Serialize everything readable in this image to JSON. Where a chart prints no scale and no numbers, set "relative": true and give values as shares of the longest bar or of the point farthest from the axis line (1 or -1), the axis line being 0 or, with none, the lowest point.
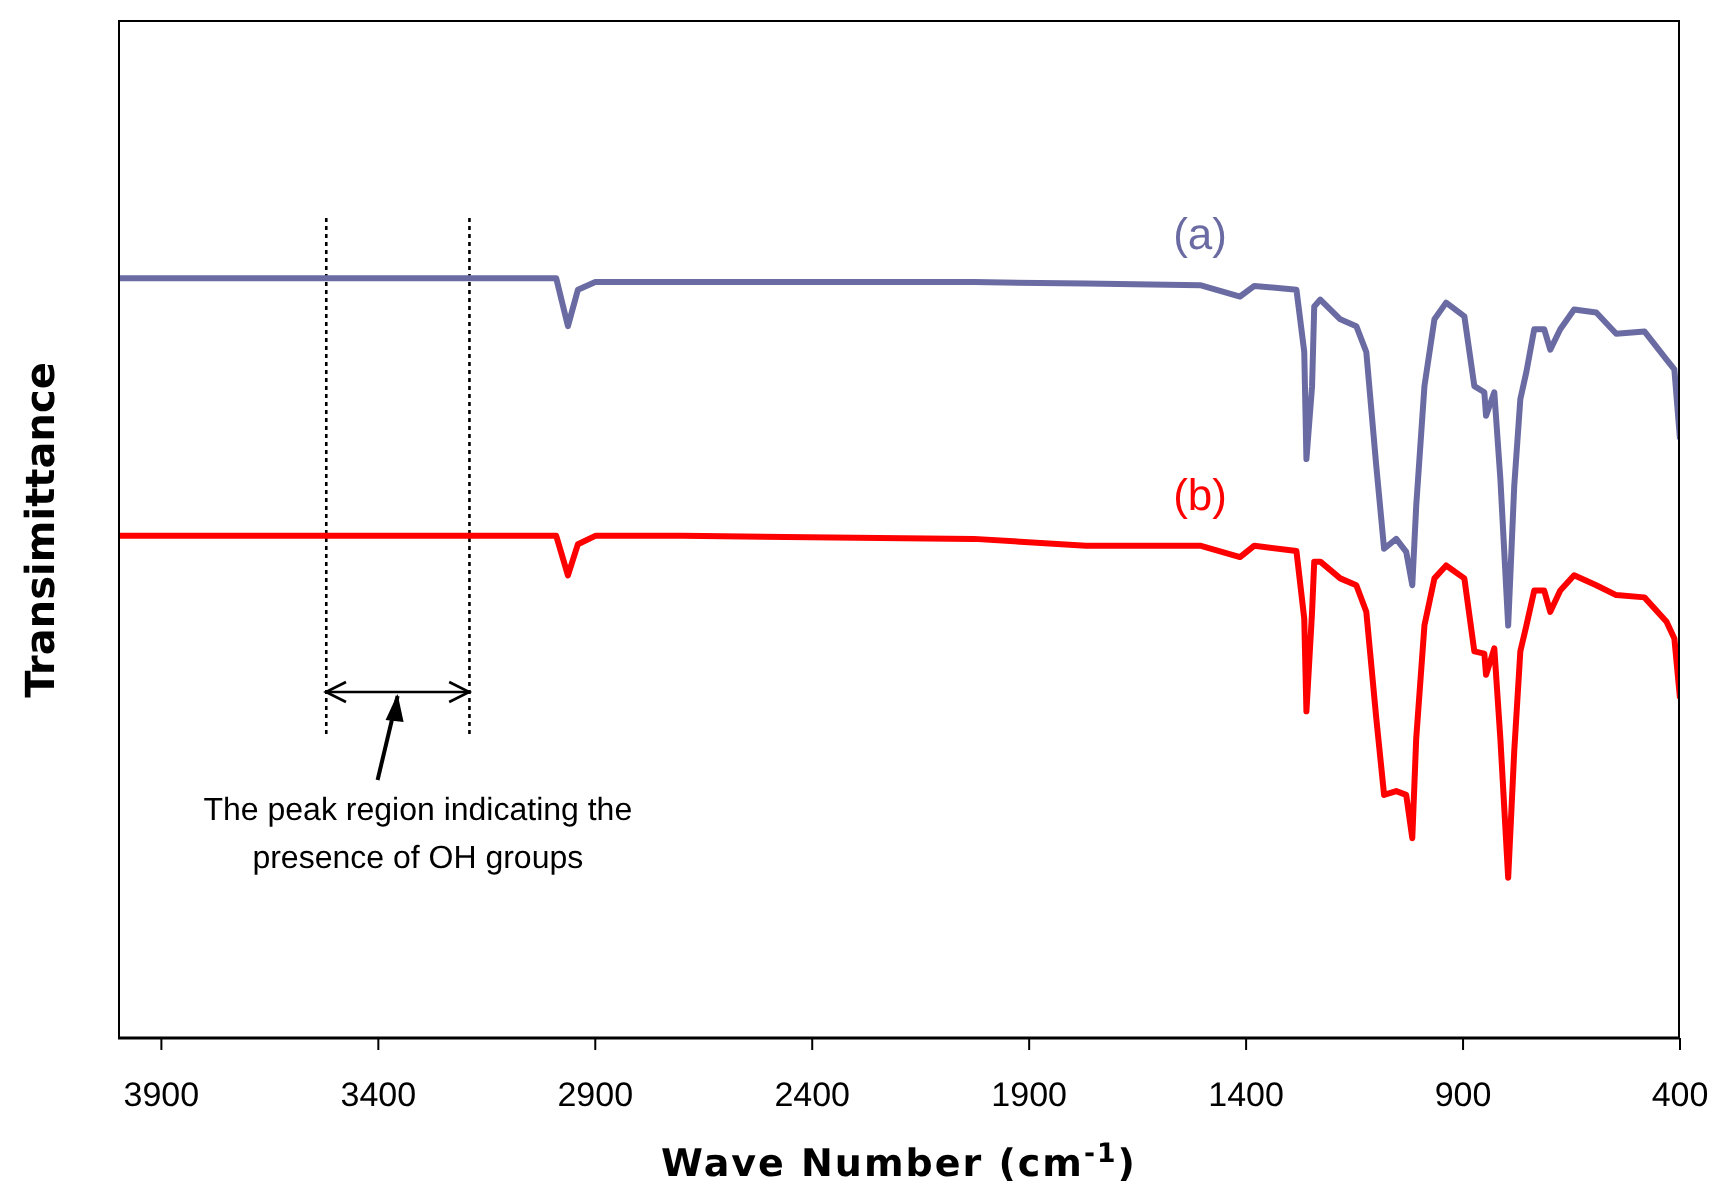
{
  "chart_data": {
    "type": "line",
    "relative": true,
    "xlabel": "Wave Number  (cm$^{-1}$)",
    "ylabel": "Transimittance",
    "xlim": [
      4000,
      400
    ],
    "xticks": [
      3900,
      3400,
      2900,
      2400,
      1900,
      1400,
      900,
      400
    ],
    "x": [
      4000,
      3800,
      3520,
      3190,
      2990,
      2963,
      2940,
      2900,
      2700,
      2027,
      1769,
      1506,
      1414,
      1381,
      1284,
      1266,
      1261,
      1248,
      1243,
      1229,
      1183,
      1146,
      1123,
      1100,
      1082,
      1054,
      1031,
      1017,
      1008,
      989,
      966,
      939,
      897,
      874,
      851,
      847,
      828,
      814,
      796,
      782,
      768,
      754,
      736,
      713,
      699,
      676,
      644,
      593,
      547,
      482,
      431,
      413,
      400
    ],
    "series": [
      {
        "name": "(a)",
        "color": "#6b6ba3",
        "values": [
          1.0,
          1.0,
          1.0,
          1.0,
          1.0,
          0.937,
          0.985,
          0.995,
          0.995,
          0.995,
          0.993,
          0.991,
          0.976,
          0.99,
          0.985,
          0.903,
          0.762,
          0.858,
          0.963,
          0.972,
          0.946,
          0.937,
          0.903,
          0.753,
          0.644,
          0.657,
          0.64,
          0.596,
          0.7,
          0.858,
          0.946,
          0.968,
          0.95,
          0.858,
          0.85,
          0.819,
          0.85,
          0.736,
          0.543,
          0.727,
          0.841,
          0.877,
          0.933,
          0.933,
          0.906,
          0.933,
          0.959,
          0.955,
          0.927,
          0.93,
          0.893,
          0.88,
          0.788
        ]
      },
      {
        "name": "(b)",
        "color": "#ff0000",
        "values": [
          0.661,
          0.661,
          0.661,
          0.661,
          0.661,
          0.609,
          0.65,
          0.661,
          0.661,
          0.657,
          0.648,
          0.648,
          0.633,
          0.648,
          0.641,
          0.552,
          0.43,
          0.561,
          0.627,
          0.627,
          0.605,
          0.596,
          0.561,
          0.421,
          0.32,
          0.325,
          0.32,
          0.263,
          0.394,
          0.543,
          0.605,
          0.622,
          0.605,
          0.509,
          0.506,
          0.478,
          0.513,
          0.394,
          0.211,
          0.378,
          0.509,
          0.543,
          0.589,
          0.589,
          0.561,
          0.589,
          0.609,
          0.596,
          0.583,
          0.58,
          0.548,
          0.526,
          0.447
        ]
      }
    ],
    "ref_lines": [
      {
        "axis": "x",
        "value": 3520,
        "line_style": "dotted",
        "color": "#000000"
      },
      {
        "axis": "x",
        "value": 3190,
        "line_style": "dotted",
        "color": "#000000"
      }
    ],
    "annotations": [
      "The peak region indicating the presence of OH groups"
    ],
    "marker": "none",
    "line_style": "solid"
  }
}
